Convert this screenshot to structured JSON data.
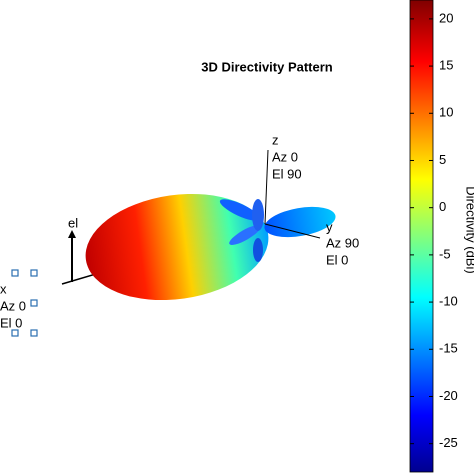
{
  "chart_data": {
    "type": "pattern3d",
    "title": "3D Directivity Pattern",
    "colorbar_label": "Directivity (dBi)",
    "clim": [
      -28,
      22
    ],
    "cticks": [
      20,
      15,
      10,
      5,
      0,
      -5,
      -10,
      -15,
      -20,
      -25
    ],
    "z_axis": {
      "name": "z",
      "az": "Az 0",
      "el": "El 90"
    },
    "y_axis": {
      "name": "y",
      "az": "Az 90",
      "el": "El 0"
    },
    "x_axis": {
      "name": "x",
      "az": "Az 0",
      "el": "El 0"
    },
    "el_label": "el"
  }
}
